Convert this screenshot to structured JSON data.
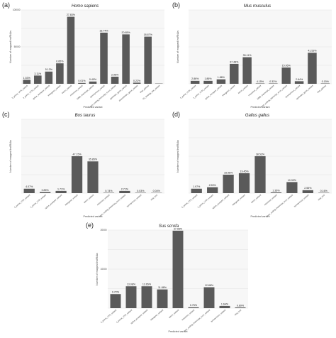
{
  "panels": [
    {
      "tag": "(a)",
      "title": "Homo sapiens"
    },
    {
      "tag": "(b)",
      "title": "Mus musculus"
    },
    {
      "tag": "(c)",
      "title": "Bos taurus"
    },
    {
      "tag": "(d)",
      "title": "Gallus gallus"
    },
    {
      "tag": "(e)",
      "title": "Sus scrofa"
    }
  ],
  "chart_data": [
    {
      "type": "bar",
      "title": "Homo sapiens",
      "xlabel": "Predicted variant",
      "ylabel": "Number of mapped lncRNAs",
      "yticks": [
        "",
        "50000",
        "100000"
      ],
      "ylim": [
        0,
        130000
      ],
      "categories": [
        "5_prime_UTR_variant",
        "3_prime_UTR_variant",
        "splice_acceptor_variant",
        "intergenic_variant",
        "intron_variant",
        "missense_variant",
        "NMD_transcript_variant",
        "synonymous_variant",
        "non_coding_transcript_exon_variant",
        "upstream_gene_variant",
        "downstream_gene_variant",
        "stop_gained",
        "TF_binding_site_variant"
      ],
      "values": [
        7000,
        14500,
        21500,
        36000,
        118000,
        1500,
        4000,
        90000,
        12500,
        87000,
        2000,
        83000,
        0
      ],
      "labels": [
        "1.53%",
        "3.11%",
        "5.13%",
        "6.85%",
        "27.83%",
        "0.01%",
        "0.40%",
        "18.74%",
        "2.96%",
        "20.85%",
        "0.22%",
        "18.87%",
        ""
      ]
    },
    {
      "type": "bar",
      "title": "Mus musculus",
      "xlabel": "Predicted variant",
      "ylabel": "Number of mapped lncRNAs",
      "yticks": [
        "",
        "",
        "",
        "",
        ""
      ],
      "ylim": [
        0,
        100
      ],
      "categories": [
        "5_prime_UTR_variant",
        "3_prime_UTR_variant",
        "splice_acceptor_variant",
        "intergenic_variant",
        "intron_variant",
        "missense_variant",
        "NMD_transcript_variant",
        "non_coding_transcript_exon_variant",
        "synonymous_variant",
        "upstream_gene_variant",
        "stop_gained"
      ],
      "values": [
        4,
        4,
        6,
        27,
        36,
        0.5,
        0.5,
        22,
        3.5,
        42,
        0.5
      ],
      "labels": [
        "2.86%",
        "1.86%",
        "1.86%",
        "37.48%",
        "35.11%",
        "4.15%",
        "0.33%",
        "15.95%",
        "2.64%",
        "41.53%",
        "0.15%"
      ]
    },
    {
      "type": "bar",
      "title": "Bos taurus",
      "xlabel": "Predicted variant",
      "ylabel": "Number of mapped lncRNAs",
      "yticks": [
        "",
        "",
        "",
        ""
      ],
      "ylim": [
        0,
        100
      ],
      "categories": [
        "5_prime_UTR_variant",
        "3_prime_UTR_variant",
        "splice_acceptor_variant",
        "intergenic_variant",
        "intron_variant",
        "missense_variant",
        "non_coding_transcript_exon_variant",
        "synonymous_variant",
        "stop_lost"
      ],
      "values": [
        6,
        1.5,
        3,
        50,
        43,
        0.5,
        3,
        0.5,
        0.3
      ],
      "labels": [
        "4.07%",
        "0.85%",
        "1.71%",
        "47.15%",
        "35.85%",
        "0.74%",
        "2.71%",
        "0.03%",
        "0.04%"
      ]
    },
    {
      "type": "bar",
      "title": "Gallus gallus",
      "xlabel": "Predicted variant",
      "ylabel": "Number of mapped lncRNAs",
      "yticks": [
        "",
        "",
        "",
        ""
      ],
      "ylim": [
        0,
        100
      ],
      "categories": [
        "5_prime_UTR_variant",
        "3_prime_UTR_variant",
        "splice_acceptor_variant",
        "intergenic_variant",
        "intron_variant",
        "missense_variant",
        "non_coding_transcript_exon_variant",
        "synonymous_variant",
        "stop_lost"
      ],
      "values": [
        6,
        8,
        25,
        27,
        50,
        1,
        15,
        4,
        0.5
      ],
      "labels": [
        "1.97%",
        "2.53%",
        "15.96%",
        "19.45%",
        "38.53%",
        "1.36%",
        "10.33%",
        "2.55%",
        "0.16%"
      ]
    },
    {
      "type": "bar",
      "title": "Sus scrofa",
      "xlabel": "Predicted variant",
      "ylabel": "Number of mapped lncRNAs",
      "yticks": [
        "",
        "10000",
        "20000"
      ],
      "ylim": [
        0,
        25000
      ],
      "categories": [
        "5_prime_UTR_variant",
        "3_prime_UTR_variant",
        "splice_acceptor_variant",
        "intergenic_variant",
        "intron_variant",
        "missense_variant",
        "non_coding_transcript_exon_variant",
        "synonymous_variant",
        "stop_lost"
      ],
      "values": [
        4500,
        7000,
        7000,
        6000,
        24800,
        300,
        6700,
        700,
        250
      ],
      "labels": [
        "9.72%",
        "13.08%",
        "13.65%",
        "11.88%",
        "37.08%",
        "0.75%",
        "12.88%",
        "1.64%",
        "0.89%"
      ]
    }
  ]
}
